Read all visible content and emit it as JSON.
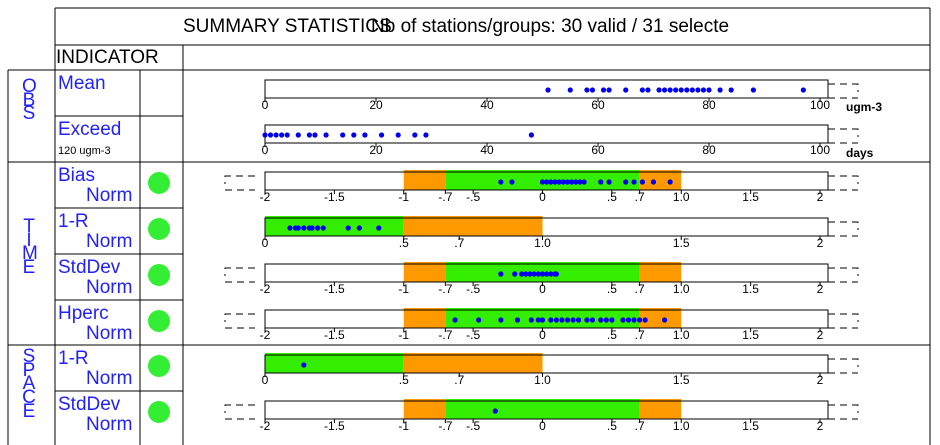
{
  "header": {
    "title": "SUMMARY STATISTICS",
    "stations_text": "Nb of stations/groups: 30 valid / 31 selecte",
    "indicator_label": "INDICATOR"
  },
  "groups": [
    "OBS",
    "TIME",
    "SPACE"
  ],
  "colors": {
    "text_blue": "#1f1fff",
    "point_blue": "#0000ee",
    "band_green": "#33ee00",
    "band_orange": "#ff9900",
    "status_green": "#33ee33"
  },
  "rows": [
    {
      "name": "Mean",
      "sub": "",
      "group": "OBS",
      "status": false
    },
    {
      "name": "Exceed",
      "sub": "120 ugm-3",
      "group": "OBS",
      "status": false
    },
    {
      "name": "Bias",
      "sub": "Norm",
      "group": "TIME",
      "status": true
    },
    {
      "name": "1-R",
      "sub": "Norm",
      "group": "TIME",
      "status": true
    },
    {
      "name": "StdDev",
      "sub": "Norm",
      "group": "TIME",
      "status": true
    },
    {
      "name": "Hperc",
      "sub": "Norm",
      "group": "TIME",
      "status": true
    },
    {
      "name": "1-R",
      "sub": "Norm",
      "group": "SPACE",
      "status": true
    },
    {
      "name": "StdDev",
      "sub": "Norm",
      "group": "SPACE",
      "status": true
    }
  ],
  "chart_data": [
    {
      "type": "scatter",
      "row": "Mean",
      "unit": "ugm-3",
      "xlim": [
        0,
        100
      ],
      "tick_labels": [
        "0",
        "20",
        "40",
        "60",
        "80",
        "100"
      ],
      "x": [
        51,
        55,
        58,
        59,
        61,
        62,
        65,
        68,
        69,
        71,
        72,
        73,
        74,
        75,
        76,
        77,
        78,
        79,
        80,
        82,
        84,
        88,
        97
      ]
    },
    {
      "type": "scatter",
      "row": "Exceed",
      "unit": "days",
      "xlim": [
        0,
        100
      ],
      "tick_labels": [
        "0",
        "20",
        "40",
        "60",
        "80",
        "100"
      ],
      "x": [
        0,
        1,
        2,
        3,
        4,
        6,
        8,
        9,
        11,
        14,
        16,
        18,
        21,
        24,
        27,
        29,
        48
      ]
    },
    {
      "type": "scatter",
      "row": "Bias Norm",
      "xlim": [
        -2,
        2
      ],
      "tick_labels": [
        "-2",
        "-1.5",
        "-1",
        "-.7",
        "-.5",
        "0",
        ".5",
        ".7",
        "1.0",
        "1.5",
        "2"
      ],
      "bands": [
        {
          "from": -1,
          "to": -0.7,
          "color": "orange"
        },
        {
          "from": -0.7,
          "to": 0.7,
          "color": "green"
        },
        {
          "from": 0.7,
          "to": 1,
          "color": "orange"
        }
      ],
      "x": [
        -0.3,
        -0.22,
        0,
        0.03,
        0.06,
        0.09,
        0.12,
        0.15,
        0.18,
        0.21,
        0.24,
        0.27,
        0.3,
        0.42,
        0.48,
        0.6,
        0.66,
        0.72,
        0.8,
        0.92
      ]
    },
    {
      "type": "scatter",
      "row": "1-R Norm",
      "xlim": [
        0,
        2
      ],
      "tick_labels": [
        "0",
        ".5",
        ".7",
        "1.0",
        "1.5",
        "2"
      ],
      "bands": [
        {
          "from": 0,
          "to": 0.5,
          "color": "green"
        },
        {
          "from": 0.5,
          "to": 1,
          "color": "orange"
        }
      ],
      "x": [
        0.09,
        0.11,
        0.12,
        0.14,
        0.16,
        0.17,
        0.19,
        0.21,
        0.3,
        0.34,
        0.41
      ]
    },
    {
      "type": "scatter",
      "row": "StdDev Norm",
      "xlim": [
        -2,
        2
      ],
      "tick_labels": [
        "-2",
        "-1.5",
        "-1",
        "-.7",
        "-.5",
        "0",
        ".5",
        ".7",
        "1.0",
        "1.5",
        "2"
      ],
      "bands": [
        {
          "from": -1,
          "to": -0.7,
          "color": "orange"
        },
        {
          "from": -0.7,
          "to": 0.7,
          "color": "green"
        },
        {
          "from": 0.7,
          "to": 1,
          "color": "orange"
        }
      ],
      "x": [
        -0.3,
        -0.2,
        -0.15,
        -0.12,
        -0.09,
        -0.06,
        -0.03,
        0,
        0.03,
        0.06,
        0.09,
        0.1
      ]
    },
    {
      "type": "scatter",
      "row": "Hperc Norm",
      "xlim": [
        -2,
        2
      ],
      "tick_labels": [
        "-2",
        "-1.5",
        "-1",
        "-.7",
        "-.5",
        "0",
        ".5",
        ".7",
        "1.0",
        "1.5",
        "2"
      ],
      "bands": [
        {
          "from": -1,
          "to": -0.7,
          "color": "orange"
        },
        {
          "from": -0.7,
          "to": 0.7,
          "color": "green"
        },
        {
          "from": 0.7,
          "to": 1,
          "color": "orange"
        }
      ],
      "x": [
        -0.63,
        -0.46,
        -0.3,
        -0.18,
        -0.08,
        -0.03,
        0,
        0.06,
        0.1,
        0.14,
        0.18,
        0.22,
        0.26,
        0.32,
        0.36,
        0.42,
        0.46,
        0.5,
        0.58,
        0.62,
        0.66,
        0.7,
        0.74,
        0.88
      ]
    },
    {
      "type": "scatter",
      "row": "1-R Norm (space)",
      "xlim": [
        0,
        2
      ],
      "tick_labels": [
        "0",
        ".5",
        ".7",
        "1.0",
        "1.5",
        "2"
      ],
      "bands": [
        {
          "from": 0,
          "to": 0.5,
          "color": "green"
        },
        {
          "from": 0.5,
          "to": 1,
          "color": "orange"
        }
      ],
      "x": [
        0.14
      ]
    },
    {
      "type": "scatter",
      "row": "StdDev Norm (space)",
      "xlim": [
        -2,
        2
      ],
      "tick_labels": [
        "-2",
        "-1.5",
        "-1",
        "-.7",
        "-.5",
        "0",
        ".5",
        ".7",
        "1.0",
        "1.5",
        "2"
      ],
      "bands": [
        {
          "from": -1,
          "to": -0.7,
          "color": "orange"
        },
        {
          "from": -0.7,
          "to": 0.7,
          "color": "green"
        },
        {
          "from": 0.7,
          "to": 1,
          "color": "orange"
        }
      ],
      "x": [
        -0.34
      ]
    }
  ]
}
